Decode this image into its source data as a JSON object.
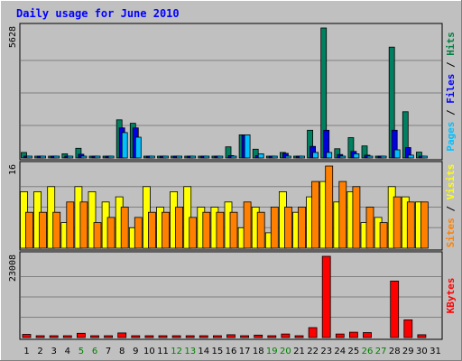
{
  "chart_data": {
    "type": "bar",
    "title": "Daily usage for June 2010",
    "categories": [
      "1",
      "2",
      "3",
      "4",
      "5",
      "6",
      "7",
      "8",
      "9",
      "10",
      "11",
      "12",
      "13",
      "14",
      "15",
      "16",
      "17",
      "18",
      "19",
      "20",
      "21",
      "22",
      "23",
      "24",
      "25",
      "26",
      "27",
      "28",
      "29",
      "30",
      "31"
    ],
    "weekend_days": [
      "5",
      "6",
      "12",
      "13",
      "19",
      "20",
      "26",
      "27"
    ],
    "panels": [
      {
        "id": "pages-files-hits",
        "max_label": "5628",
        "ylim": [
          0,
          5628
        ],
        "axis_legend": [
          {
            "text": "Pages",
            "color": "#00c0ff"
          },
          {
            "text": " / ",
            "color": "#000000"
          },
          {
            "text": "Files",
            "color": "#0000ff"
          },
          {
            "text": " / ",
            "color": "#000000"
          },
          {
            "text": "Hits",
            "color": "#008040"
          }
        ],
        "series": [
          {
            "name": "Hits",
            "color": "#008060",
            "values": [
              240,
              70,
              60,
              180,
              420,
              40,
              60,
              1650,
              1500,
              50,
              40,
              40,
              40,
              40,
              50,
              480,
              1000,
              380,
              30,
              240,
              30,
              1200,
              5628,
              400,
              880,
              520,
              20,
              4800,
              2000,
              250,
              0
            ]
          },
          {
            "name": "Files",
            "color": "#0000e0",
            "values": [
              60,
              20,
              10,
              60,
              160,
              10,
              20,
              1300,
              1300,
              10,
              10,
              10,
              10,
              10,
              10,
              100,
              1000,
              100,
              10,
              200,
              10,
              500,
              1200,
              150,
              280,
              120,
              5,
              1200,
              450,
              80,
              0
            ]
          },
          {
            "name": "Pages",
            "color": "#00c0ff",
            "values": [
              40,
              10,
              10,
              20,
              40,
              10,
              10,
              1100,
              900,
              10,
              10,
              10,
              10,
              10,
              10,
              40,
              1000,
              180,
              10,
              40,
              10,
              240,
              240,
              40,
              180,
              80,
              5,
              350,
              120,
              40,
              0
            ]
          }
        ]
      },
      {
        "id": "sites-visits",
        "max_label": "16",
        "ylim": [
          0,
          16
        ],
        "axis_legend": [
          {
            "text": "Sites",
            "color": "#ff8000"
          },
          {
            "text": " / ",
            "color": "#000000"
          },
          {
            "text": "Visits",
            "color": "#ffff00"
          }
        ],
        "series": [
          {
            "name": "Visits",
            "color": "#ffff00",
            "values": [
              11,
              11,
              12,
              5,
              12,
              11,
              9,
              10,
              4,
              12,
              8,
              11,
              12,
              8,
              8,
              9,
              4,
              8,
              3,
              11,
              7,
              10,
              13,
              9,
              11,
              5,
              6,
              12,
              10,
              9,
              0
            ]
          },
          {
            "name": "Sites",
            "color": "#ff8000",
            "values": [
              7,
              7,
              7,
              9,
              9,
              5,
              6,
              8,
              6,
              7,
              7,
              8,
              6,
              7,
              7,
              7,
              9,
              7,
              8,
              8,
              8,
              13,
              16,
              13,
              12,
              8,
              5,
              10,
              9,
              9,
              0
            ]
          }
        ]
      },
      {
        "id": "kbytes",
        "max_label": "23008",
        "ylim": [
          0,
          23008
        ],
        "axis_legend": [
          {
            "text": "KBytes",
            "color": "#ff0000"
          }
        ],
        "series": [
          {
            "name": "KBytes",
            "color": "#ff0000",
            "values": [
              900,
              500,
              200,
              300,
              1200,
              400,
              500,
              1300,
              350,
              350,
              250,
              250,
              250,
              250,
              300,
              800,
              250,
              700,
              250,
              1000,
              200,
              2800,
              23008,
              1000,
              1500,
              1400,
              0,
              16000,
              5000,
              800,
              0
            ]
          }
        ]
      }
    ]
  }
}
